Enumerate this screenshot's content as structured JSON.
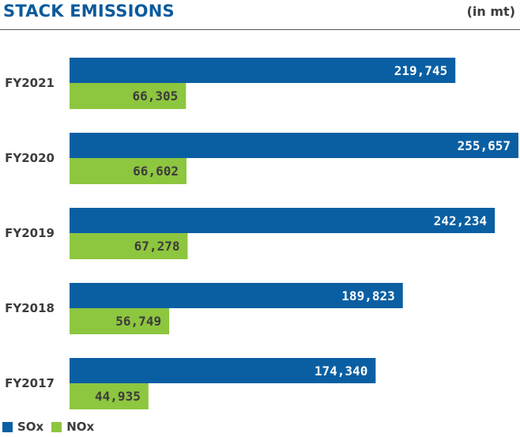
{
  "header": {
    "title": "STACK EMISSIONS",
    "unit": "(in mt)"
  },
  "colors": {
    "sox": "#0a5fa3",
    "nox": "#8dc63f",
    "label_dark": "#3c3c3c",
    "title": "#0a5a9c"
  },
  "legend": {
    "sox_label": "SOx",
    "nox_label": "NOx"
  },
  "chart_data": {
    "type": "bar",
    "orientation": "horizontal",
    "title": "STACK EMISSIONS",
    "unit": "(in mt)",
    "categories": [
      "FY2021",
      "FY2020",
      "FY2019",
      "FY2018",
      "FY2017"
    ],
    "series": [
      {
        "name": "SOx",
        "values": [
          219745,
          255657,
          242234,
          189823,
          174340
        ],
        "labels": [
          "219,745",
          "255,657",
          "242,234",
          "189,823",
          "174,340"
        ]
      },
      {
        "name": "NOx",
        "values": [
          66305,
          66602,
          67278,
          56749,
          44935
        ],
        "labels": [
          "66,305",
          "66,602",
          "67,278",
          "56,749",
          "44,935"
        ]
      }
    ],
    "xlim": [
      0,
      255657
    ],
    "grid": false,
    "legend_position": "bottom-left"
  }
}
